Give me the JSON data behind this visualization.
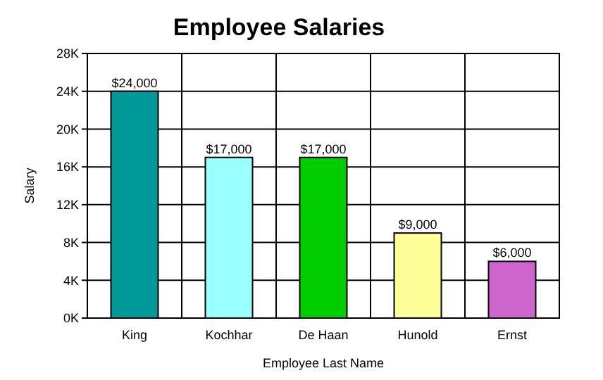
{
  "chart_data": {
    "type": "bar",
    "title": "Employee Salaries",
    "xlabel": "Employee Last Name",
    "ylabel": "Salary",
    "categories": [
      "King",
      "Kochhar",
      "De Haan",
      "Hunold",
      "Ernst"
    ],
    "values": [
      24000,
      17000,
      17000,
      9000,
      6000
    ],
    "colors": [
      "#009999",
      "#99ffff",
      "#00cc00",
      "#ffff99",
      "#cc66cc"
    ],
    "value_labels": [
      "$24,000",
      "$17,000",
      "$17,000",
      "$9,000",
      "$6,000"
    ],
    "ylim": [
      0,
      28000
    ],
    "yticks": [
      {
        "value": 0,
        "label": "0K"
      },
      {
        "value": 4000,
        "label": "4K"
      },
      {
        "value": 8000,
        "label": "8K"
      },
      {
        "value": 12000,
        "label": "12K"
      },
      {
        "value": 16000,
        "label": "16K"
      },
      {
        "value": 20000,
        "label": "20K"
      },
      {
        "value": 24000,
        "label": "24K"
      },
      {
        "value": 28000,
        "label": "28K"
      }
    ],
    "grid": true
  }
}
